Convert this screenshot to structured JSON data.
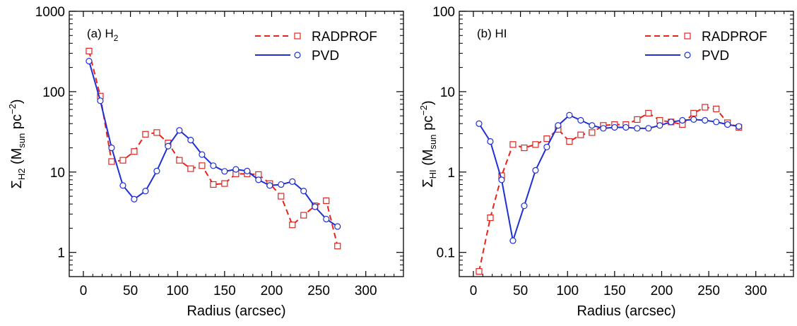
{
  "colors": {
    "radprof": "#e8231c",
    "pvd": "#1f2fd6",
    "axis": "#000000"
  },
  "chart_data": [
    {
      "type": "line",
      "panel_label": "(a)",
      "panel_species": "H",
      "panel_species_sub": "2",
      "xlabel": "Radius (arcsec)",
      "ylabel_symbol": "Σ",
      "ylabel_sub": "H2",
      "ylabel_units_pre": " (M",
      "ylabel_units_sub": "sun",
      "ylabel_units_mid": " pc",
      "ylabel_units_sup": "−2",
      "ylabel_units_post": ")",
      "xlim": [
        -15,
        340
      ],
      "ylim": [
        0.5,
        1000
      ],
      "yscale": "log",
      "xticks": [
        0,
        50,
        100,
        150,
        200,
        250,
        300
      ],
      "xtick_labels": [
        "0",
        "50",
        "100",
        "150",
        "200",
        "250",
        "300"
      ],
      "yticks": [
        1,
        10,
        100,
        1000
      ],
      "ytick_labels": [
        "1",
        "10",
        "100",
        "1000"
      ],
      "legend_position": "top-right",
      "series": [
        {
          "name": "RADPROF",
          "style": "dashed",
          "marker": "square",
          "x": [
            6,
            18,
            30,
            42,
            54,
            66,
            78,
            90,
            102,
            114,
            126,
            138,
            150,
            162,
            174,
            186,
            198,
            210,
            222,
            234,
            246,
            258,
            270
          ],
          "y": [
            320,
            88,
            13.5,
            14,
            18,
            29.5,
            31,
            23,
            14,
            11,
            12,
            7,
            7.2,
            9.5,
            9.5,
            9.3,
            7.2,
            5,
            2.2,
            2.9,
            3.8,
            4.4,
            1.2
          ]
        },
        {
          "name": "PVD",
          "style": "solid",
          "marker": "circle",
          "x": [
            6,
            18,
            30,
            42,
            54,
            66,
            78,
            90,
            102,
            114,
            126,
            138,
            150,
            162,
            174,
            186,
            198,
            210,
            222,
            234,
            246,
            258,
            270
          ],
          "y": [
            240,
            77,
            20,
            6.8,
            4.6,
            5.8,
            10.3,
            21,
            33,
            25,
            16.5,
            12,
            10.2,
            10.8,
            10.3,
            8,
            6.8,
            7,
            7.6,
            5.8,
            3.7,
            2.6,
            2.1
          ]
        }
      ]
    },
    {
      "type": "line",
      "panel_label": "(b)",
      "panel_species": "HI",
      "panel_species_sub": "",
      "xlabel": "Radius (arcsec)",
      "ylabel_symbol": "Σ",
      "ylabel_sub": "HI",
      "ylabel_units_pre": " (M",
      "ylabel_units_sub": "sun",
      "ylabel_units_mid": " pc",
      "ylabel_units_sup": "−2",
      "ylabel_units_post": ")",
      "xlim": [
        -15,
        340
      ],
      "ylim": [
        0.05,
        100
      ],
      "yscale": "log",
      "xticks": [
        0,
        50,
        100,
        150,
        200,
        250,
        300
      ],
      "xtick_labels": [
        "0",
        "50",
        "100",
        "150",
        "200",
        "250",
        "300"
      ],
      "yticks": [
        0.1,
        1,
        10,
        100
      ],
      "ytick_labels": [
        "0.1",
        "1",
        "10",
        "100"
      ],
      "legend_position": "top-right",
      "series": [
        {
          "name": "RADPROF",
          "style": "dashed",
          "marker": "square",
          "x": [
            6,
            18,
            30,
            42,
            54,
            66,
            78,
            90,
            102,
            114,
            126,
            138,
            150,
            162,
            174,
            186,
            198,
            210,
            222,
            234,
            246,
            258,
            270,
            282
          ],
          "y": [
            0.058,
            0.27,
            0.9,
            2.2,
            2,
            2.2,
            2.6,
            3.4,
            2.4,
            2.9,
            3.1,
            3.8,
            3.9,
            3.9,
            4.5,
            5.4,
            4.4,
            4.2,
            3.9,
            5.4,
            6.4,
            6.1,
            4.1,
            3.6
          ]
        },
        {
          "name": "PVD",
          "style": "solid",
          "marker": "circle",
          "x": [
            6,
            18,
            30,
            42,
            54,
            66,
            78,
            90,
            102,
            114,
            126,
            138,
            150,
            162,
            174,
            186,
            198,
            210,
            222,
            234,
            246,
            258,
            270,
            282
          ],
          "y": [
            4,
            2.4,
            0.8,
            0.14,
            0.38,
            1.05,
            2.05,
            3.8,
            5.1,
            4.4,
            3.8,
            3.5,
            3.6,
            3.6,
            3.5,
            3.5,
            3.8,
            4.2,
            4.4,
            4.5,
            4.4,
            4.2,
            3.9,
            3.7
          ]
        }
      ]
    }
  ]
}
